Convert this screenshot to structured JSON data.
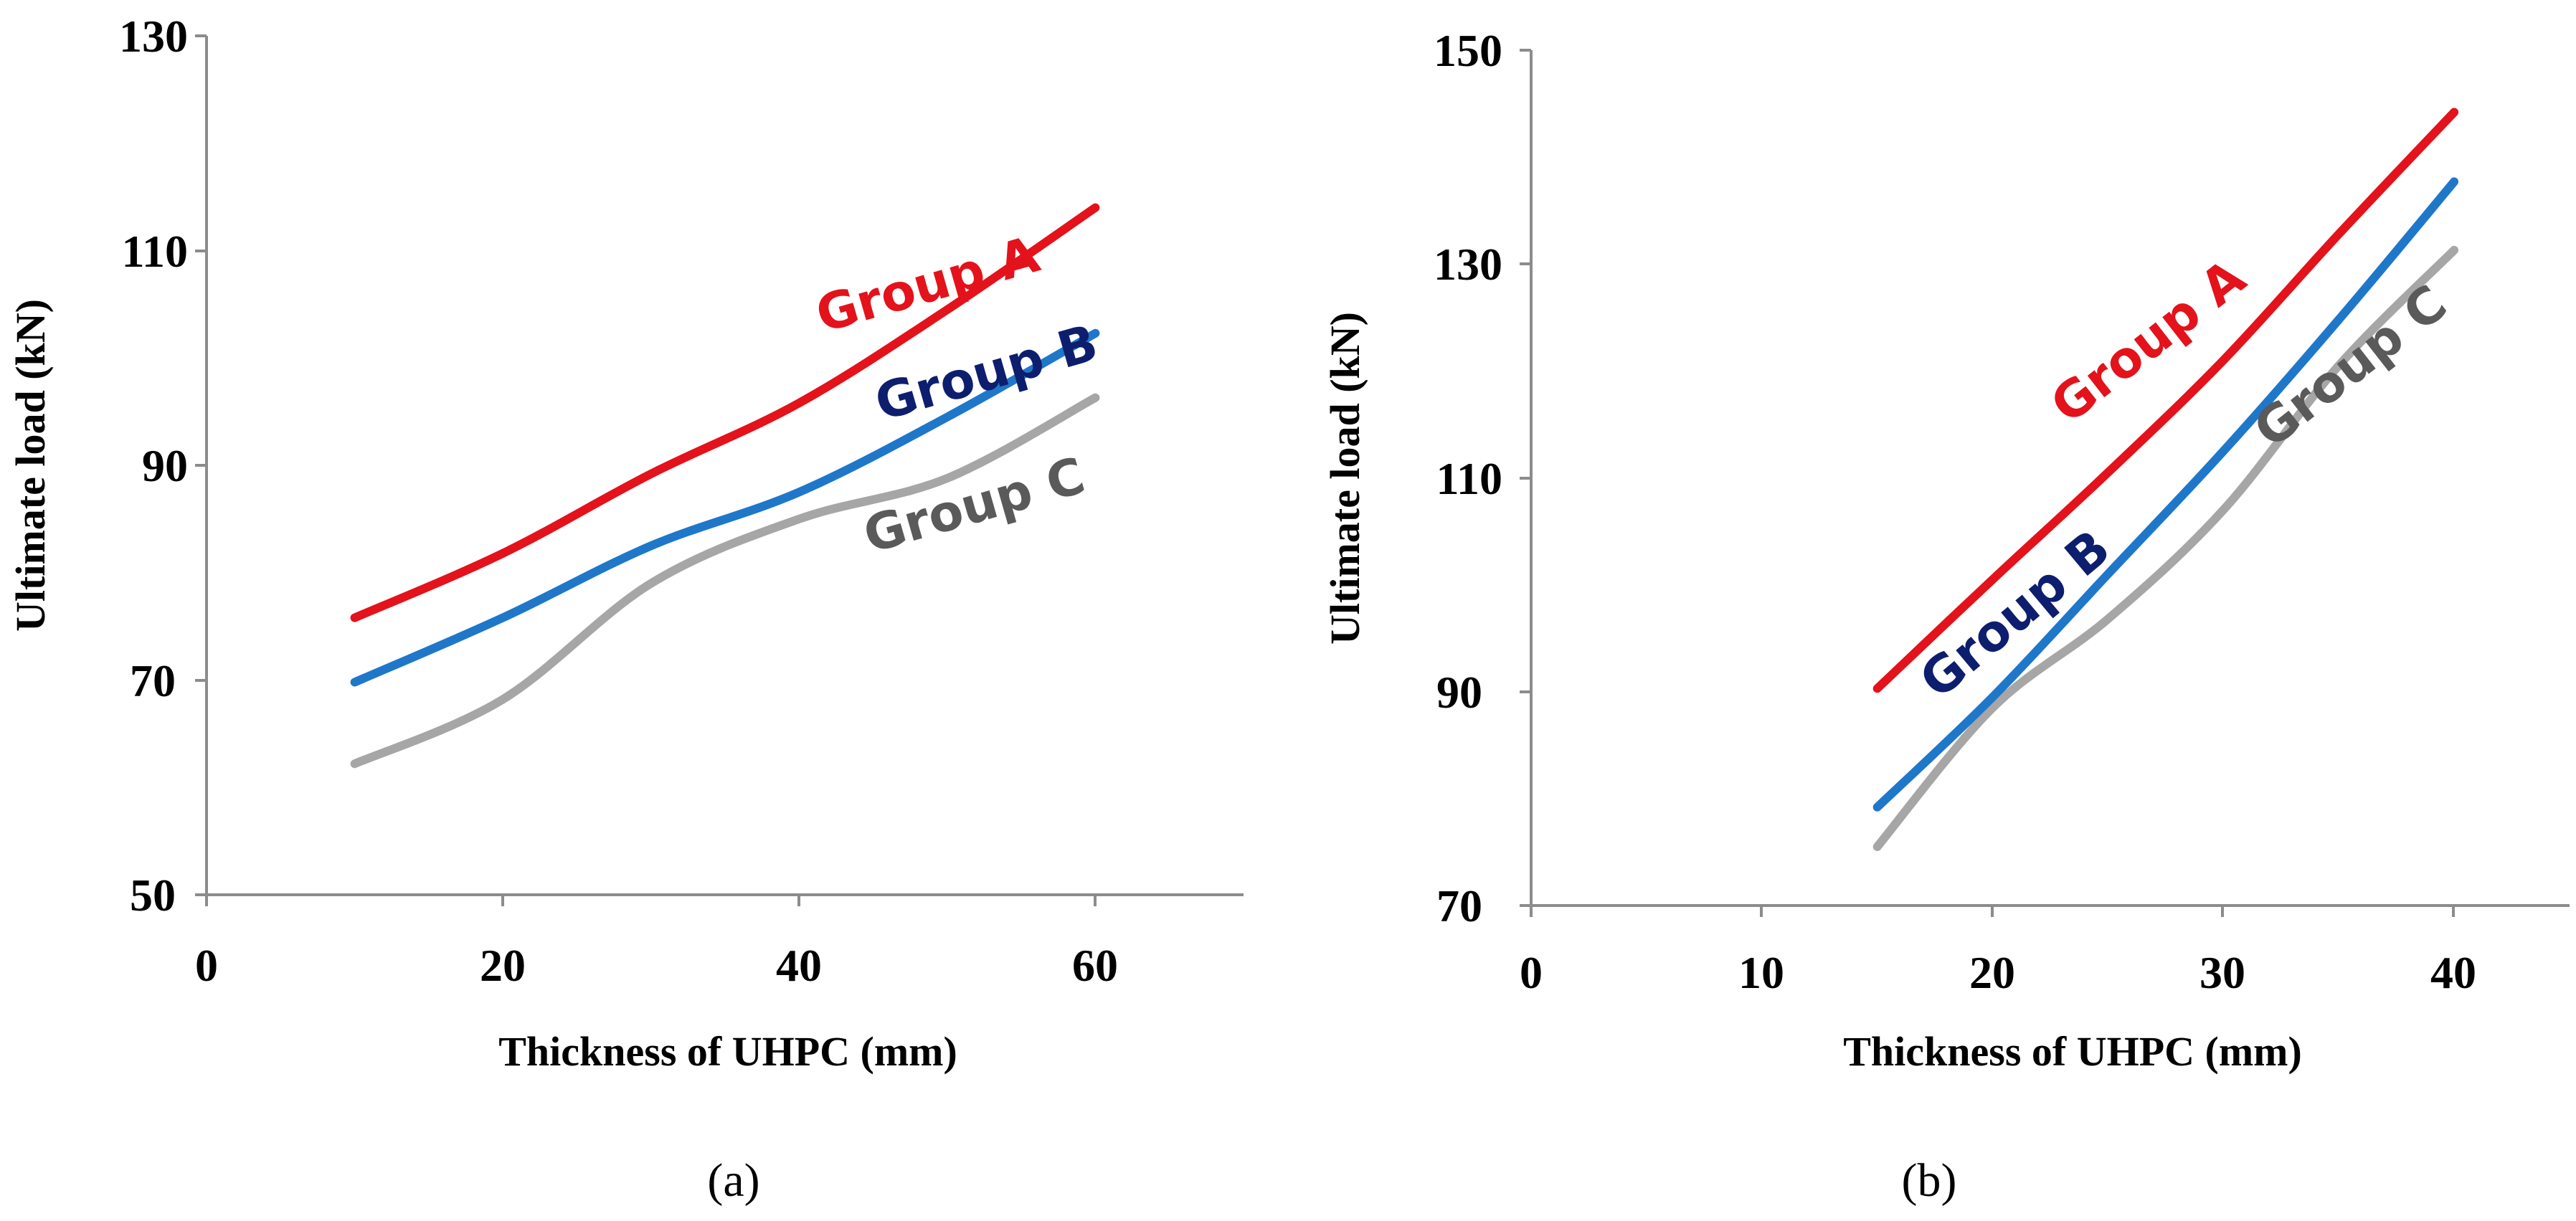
{
  "chart_data": [
    {
      "type": "line",
      "caption": "(a)",
      "xlabel": "Thickness of UHPC (mm)",
      "ylabel": "Ultimate load (kN)",
      "xlim": [
        0,
        70
      ],
      "ylim": [
        50,
        130
      ],
      "xticks": [
        0,
        20,
        40,
        60
      ],
      "yticks": [
        50,
        70,
        90,
        110,
        130
      ],
      "grid": false,
      "x": [
        10,
        20,
        30,
        40,
        50,
        60
      ],
      "series": [
        {
          "name": "Group A",
          "color": "#e3121b",
          "label_color": "#e3121b",
          "values": [
            75.8,
            81.8,
            89.2,
            95.8,
            104.5,
            114.0
          ]
        },
        {
          "name": "Group B",
          "color": "#1f77c9",
          "label_color": "#0d1e6e",
          "values": [
            69.8,
            75.8,
            82.5,
            87.5,
            94.5,
            102.3
          ]
        },
        {
          "name": "Group C",
          "color": "#a6a6a6",
          "label_color": "#5a5a5a",
          "values": [
            62.2,
            68.2,
            79.0,
            85.0,
            88.8,
            96.3
          ]
        }
      ]
    },
    {
      "type": "line",
      "caption": "(b)",
      "xlabel": "Thickness of UHPC (mm)",
      "ylabel": "Ultimate load (kN)",
      "xlim": [
        0,
        45
      ],
      "ylim": [
        70,
        150
      ],
      "xticks": [
        0,
        10,
        20,
        30,
        40
      ],
      "yticks": [
        70,
        90,
        110,
        130,
        150
      ],
      "grid": false,
      "x": [
        15,
        20,
        25,
        30,
        35,
        40
      ],
      "series": [
        {
          "name": "Group A",
          "color": "#e3121b",
          "label_color": "#e3121b",
          "values": [
            90.3,
            100.5,
            110.5,
            121.0,
            132.8,
            144.2
          ]
        },
        {
          "name": "Group B",
          "color": "#1f77c9",
          "label_color": "#0d1e6e",
          "values": [
            79.2,
            89.5,
            101.0,
            112.5,
            124.8,
            137.7
          ]
        },
        {
          "name": "Group C",
          "color": "#a6a6a6",
          "label_color": "#5a5a5a",
          "values": [
            75.5,
            88.5,
            96.8,
            107.0,
            120.5,
            131.3
          ]
        }
      ]
    }
  ]
}
